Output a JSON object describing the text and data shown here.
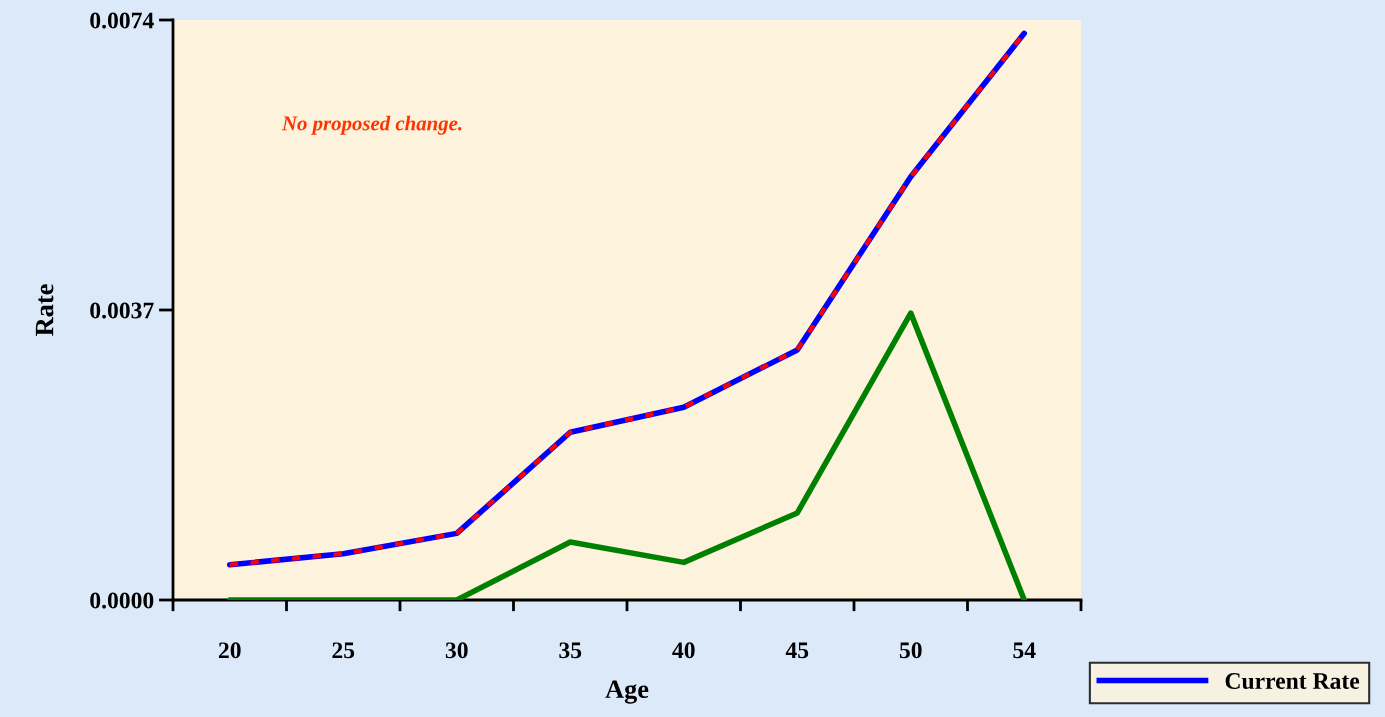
{
  "chart_data": {
    "type": "line",
    "xlabel": "Age",
    "ylabel": "Rate",
    "categories": [
      "20",
      "25",
      "30",
      "35",
      "40",
      "45",
      "50",
      "54"
    ],
    "series": [
      {
        "name": "Current Rate",
        "color": "#0000ff",
        "line_style": "solid",
        "values": [
          0.00045,
          0.00059,
          0.00085,
          0.00214,
          0.00246,
          0.00319,
          0.0054,
          0.00723
        ]
      },
      {
        "color": "#ff0000",
        "line_style": "dashed",
        "values": [
          0.00045,
          0.00059,
          0.00085,
          0.00214,
          0.00246,
          0.00319,
          0.0054,
          0.00723
        ]
      },
      {
        "color": "#008000",
        "line_style": "solid",
        "values": [
          0,
          0,
          0,
          0.00074,
          0.00048,
          0.00111,
          0.00366,
          0
        ]
      }
    ],
    "ylim": [
      0,
      0.0074
    ],
    "yticks": [
      {
        "value": 0,
        "label": "0.0000"
      },
      {
        "value": 0.0037,
        "label": "0.0037"
      },
      {
        "value": 0.0074,
        "label": "0.0074"
      }
    ],
    "annotations": [
      "No proposed change."
    ],
    "grid": false,
    "legend": "bottom right",
    "marker": "none"
  }
}
